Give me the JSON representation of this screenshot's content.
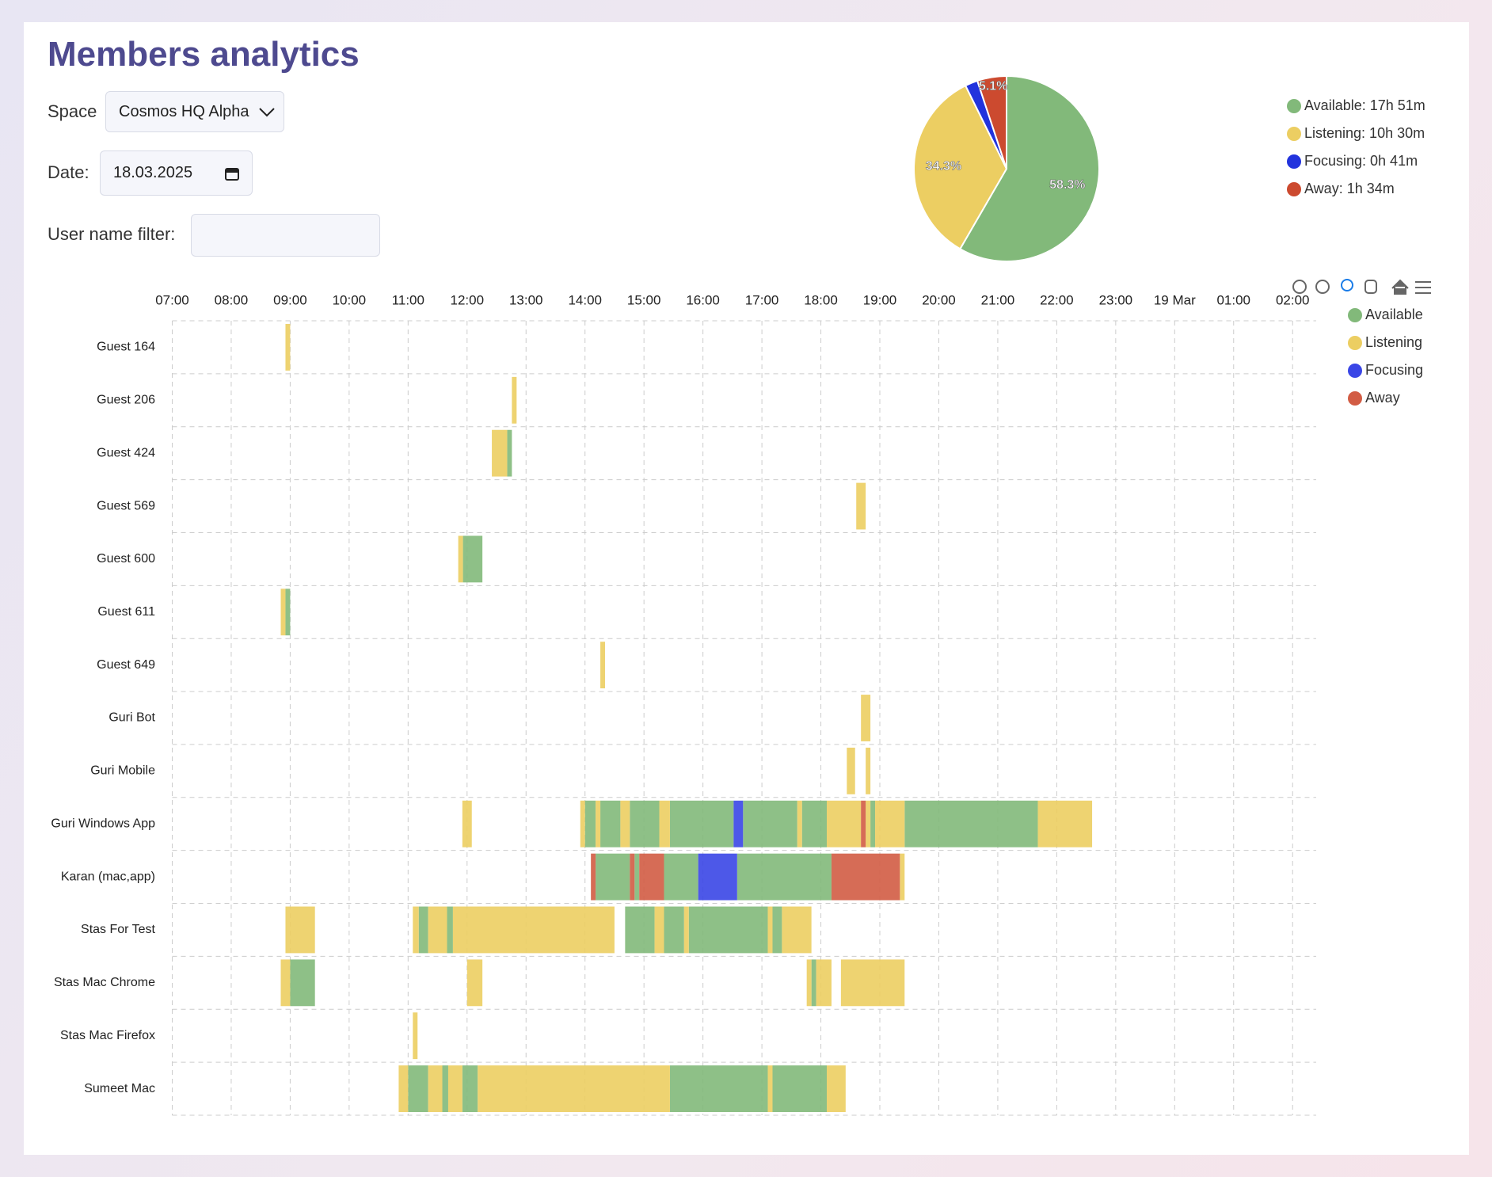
{
  "header": {
    "title": "Members analytics"
  },
  "filters": {
    "space_label": "Space",
    "space_value": "Cosmos HQ Alpha",
    "date_label": "Date:",
    "date_value": "18.03.2025",
    "user_label": "User name filter:"
  },
  "chart_data": [
    {
      "type": "pie",
      "categories": [
        "Available: 17h 51m",
        "Listening: 10h 30m",
        "Focusing: 0h 41m",
        "Away: 1h 34m"
      ],
      "values": [
        58.3,
        34.3,
        2.2,
        5.1
      ],
      "value_labels": [
        "58.3%",
        "34.3%",
        null,
        "5.1%"
      ],
      "colors": [
        "#82b97a",
        "#ecce62",
        "#2233dd",
        "#cc4a2f"
      ]
    },
    {
      "type": "timeline",
      "categories": [
        "Guest 164",
        "Guest 206",
        "Guest 424",
        "Guest 569",
        "Guest 600",
        "Guest 611",
        "Guest 649",
        "Guri Bot",
        "Guri Mobile",
        "Guri Windows App",
        "Karan (mac,app)",
        "Stas For Test",
        "Stas Mac Chrome",
        "Stas Mac Firefox",
        "Sumeet Mac"
      ],
      "xlim": [
        7,
        26.4
      ],
      "xticks": [
        {
          "value": 7,
          "label": "07:00"
        },
        {
          "value": 8,
          "label": "08:00"
        },
        {
          "value": 9,
          "label": "09:00"
        },
        {
          "value": 10,
          "label": "10:00"
        },
        {
          "value": 11,
          "label": "11:00"
        },
        {
          "value": 12,
          "label": "12:00"
        },
        {
          "value": 13,
          "label": "13:00"
        },
        {
          "value": 14,
          "label": "14:00"
        },
        {
          "value": 15,
          "label": "15:00"
        },
        {
          "value": 16,
          "label": "16:00"
        },
        {
          "value": 17,
          "label": "17:00"
        },
        {
          "value": 18,
          "label": "18:00"
        },
        {
          "value": 19,
          "label": "19:00"
        },
        {
          "value": 20,
          "label": "20:00"
        },
        {
          "value": 21,
          "label": "21:00"
        },
        {
          "value": 22,
          "label": "22:00"
        },
        {
          "value": 23,
          "label": "23:00"
        },
        {
          "value": 24,
          "label": "19 Mar"
        },
        {
          "value": 25,
          "label": "01:00"
        },
        {
          "value": 26,
          "label": "02:00"
        }
      ],
      "grid": true,
      "series": [
        {
          "name": "Available",
          "color": "#82b97a",
          "values": [
            [],
            [],
            [
              [
                12.68,
                12.76
              ]
            ],
            [],
            [
              [
                11.93,
                12.26
              ]
            ],
            [
              [
                8.92,
                9.0
              ]
            ],
            [],
            [],
            [],
            [
              [
                14.0,
                14.18
              ],
              [
                14.26,
                14.6
              ],
              [
                14.76,
                15.26
              ],
              [
                15.44,
                16.52
              ],
              [
                16.68,
                17.6
              ],
              [
                17.68,
                18.1
              ],
              [
                18.84,
                18.92
              ],
              [
                19.42,
                21.68
              ]
            ],
            [
              [
                14.18,
                14.76
              ],
              [
                14.84,
                14.92
              ],
              [
                15.34,
                15.92
              ],
              [
                16.58,
                18.18
              ]
            ],
            [
              [
                11.18,
                11.34
              ],
              [
                11.66,
                11.76
              ],
              [
                14.68,
                15.18
              ],
              [
                15.34,
                15.68
              ],
              [
                15.76,
                17.1
              ],
              [
                17.18,
                17.34
              ]
            ],
            [
              [
                9.0,
                9.42
              ],
              [
                17.84,
                17.92
              ]
            ],
            [],
            [
              [
                11.0,
                11.34
              ],
              [
                11.58,
                11.68
              ],
              [
                11.92,
                12.18
              ],
              [
                15.44,
                17.1
              ],
              [
                17.18,
                18.1
              ]
            ]
          ]
        },
        {
          "name": "Listening",
          "color": "#ecce62",
          "values": [
            [
              [
                8.92,
                9.0
              ]
            ],
            [
              [
                12.76,
                12.84
              ]
            ],
            [
              [
                12.42,
                12.68
              ]
            ],
            [
              [
                18.6,
                18.76
              ]
            ],
            [
              [
                11.85,
                11.93
              ]
            ],
            [
              [
                8.84,
                8.92
              ]
            ],
            [
              [
                14.26,
                14.34
              ]
            ],
            [
              [
                18.68,
                18.84
              ]
            ],
            [
              [
                18.44,
                18.58
              ],
              [
                18.76,
                18.84
              ]
            ],
            [
              [
                11.92,
                12.08
              ],
              [
                13.92,
                14.0
              ],
              [
                14.18,
                14.26
              ],
              [
                14.6,
                14.76
              ],
              [
                15.26,
                15.44
              ],
              [
                17.6,
                17.68
              ],
              [
                18.1,
                18.68
              ],
              [
                18.76,
                18.84
              ],
              [
                18.92,
                19.42
              ],
              [
                21.68,
                22.6
              ]
            ],
            [
              [
                19.34,
                19.42
              ]
            ],
            [
              [
                8.92,
                9.42
              ],
              [
                11.08,
                11.18
              ],
              [
                11.34,
                11.66
              ],
              [
                11.76,
                14.5
              ],
              [
                15.18,
                15.34
              ],
              [
                15.68,
                15.76
              ],
              [
                17.1,
                17.18
              ],
              [
                17.34,
                17.84
              ]
            ],
            [
              [
                8.84,
                9.0
              ],
              [
                12.0,
                12.26
              ],
              [
                17.76,
                17.84
              ],
              [
                17.92,
                18.18
              ],
              [
                18.34,
                19.42
              ]
            ],
            [
              [
                11.08,
                11.16
              ]
            ],
            [
              [
                10.84,
                11.0
              ],
              [
                11.34,
                11.58
              ],
              [
                11.68,
                11.92
              ],
              [
                12.18,
                15.44
              ],
              [
                17.1,
                17.18
              ],
              [
                18.1,
                18.42
              ]
            ]
          ]
        },
        {
          "name": "Focusing",
          "color": "#3a46e6",
          "values": [
            [],
            [],
            [],
            [],
            [],
            [],
            [],
            [],
            [],
            [
              [
                16.52,
                16.68
              ]
            ],
            [
              [
                15.92,
                16.58
              ]
            ],
            [],
            [],
            [],
            []
          ]
        },
        {
          "name": "Away",
          "color": "#d25c44",
          "values": [
            [],
            [],
            [],
            [],
            [],
            [],
            [],
            [],
            [],
            [
              [
                18.68,
                18.76
              ]
            ],
            [
              [
                14.1,
                14.18
              ],
              [
                14.76,
                14.84
              ],
              [
                14.92,
                15.34
              ],
              [
                18.18,
                19.34
              ]
            ],
            [],
            [],
            [],
            []
          ]
        }
      ]
    }
  ]
}
